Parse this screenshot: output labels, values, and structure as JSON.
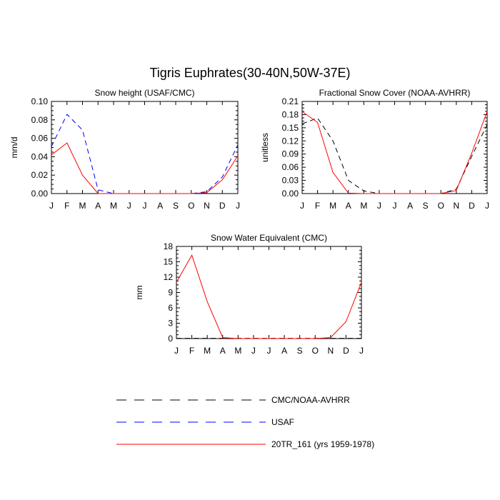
{
  "title": "Tigris Euphrates(30-40N,50W-37E)",
  "legend": [
    {
      "label": "CMC/NOAA-AVHRR",
      "color": "#000000",
      "dash": "dashed"
    },
    {
      "label": "USAF",
      "color": "#0000ff",
      "dash": "dashed"
    },
    {
      "label": "20TR_161 (yrs 1959-1978)",
      "color": "#ff0000",
      "dash": "solid"
    }
  ],
  "chart_data": [
    {
      "type": "line",
      "title": "Snow height (USAF/CMC)",
      "xlabel": "",
      "ylabel": "mm/d",
      "categories": [
        "J",
        "F",
        "M",
        "A",
        "M",
        "J",
        "J",
        "A",
        "S",
        "O",
        "N",
        "D",
        "J"
      ],
      "ylim": [
        0,
        0.1
      ],
      "yticks": [
        0,
        0.02,
        0.04,
        0.06,
        0.08,
        0.1
      ],
      "ytick_labels": [
        "0.00",
        "0.02",
        "0.04",
        "0.06",
        "0.08",
        "0.10"
      ],
      "series": [
        {
          "name": "USAF",
          "color": "#0000ff",
          "dash": "dashed",
          "values": [
            0.051,
            0.086,
            0.069,
            0.004,
            0.0,
            0.0,
            0.0,
            0.0,
            0.0,
            0.0,
            0.002,
            0.018,
            0.053
          ]
        },
        {
          "name": "20TR_161 (yrs 1959-1978)",
          "color": "#ff0000",
          "dash": "solid",
          "values": [
            0.042,
            0.055,
            0.02,
            0.0,
            0.0,
            0.0,
            0.0,
            0.0,
            0.0,
            0.0,
            0.001,
            0.015,
            0.041
          ]
        }
      ]
    },
    {
      "type": "line",
      "title": "Fractional Snow Cover (NOAA-AVHRR)",
      "xlabel": "",
      "ylabel": "unitless",
      "categories": [
        "J",
        "F",
        "M",
        "A",
        "M",
        "J",
        "J",
        "A",
        "S",
        "O",
        "N",
        "D",
        "J"
      ],
      "ylim": [
        0,
        0.21
      ],
      "yticks": [
        0,
        0.03,
        0.06,
        0.09,
        0.12,
        0.15,
        0.18,
        0.21
      ],
      "ytick_labels": [
        "0.00",
        "0.03",
        "0.06",
        "0.09",
        "0.12",
        "0.15",
        "0.18",
        "0.21"
      ],
      "series": [
        {
          "name": "CMC/NOAA-AVHRR",
          "color": "#000000",
          "dash": "dashed",
          "values": [
            0.159,
            0.172,
            0.12,
            0.03,
            0.006,
            0.0,
            0.0,
            0.0,
            0.0,
            0.0,
            0.01,
            0.085,
            0.157
          ]
        },
        {
          "name": "20TR_161 (yrs 1959-1978)",
          "color": "#ff0000",
          "dash": "solid",
          "values": [
            0.187,
            0.162,
            0.048,
            0.001,
            0.0,
            0.0,
            0.0,
            0.0,
            0.0,
            0.0,
            0.007,
            0.092,
            0.187
          ]
        }
      ]
    },
    {
      "type": "line",
      "title": "Snow Water Equivalent (CMC)",
      "xlabel": "",
      "ylabel": "mm",
      "categories": [
        "J",
        "F",
        "M",
        "A",
        "M",
        "J",
        "J",
        "A",
        "S",
        "O",
        "N",
        "D",
        "J"
      ],
      "ylim": [
        0,
        18
      ],
      "yticks": [
        0,
        3,
        6,
        9,
        12,
        15,
        18
      ],
      "ytick_labels": [
        "0",
        "3",
        "6",
        "9",
        "12",
        "15",
        "18"
      ],
      "series": [
        {
          "name": "CMC/NOAA-AVHRR",
          "color": "#000000",
          "dash": "dashed",
          "values": [
            0.05,
            0.05,
            0.05,
            0.05,
            0.05,
            0.05,
            0.05,
            0.05,
            0.05,
            0.05,
            0.05,
            0.05,
            0.05
          ]
        },
        {
          "name": "20TR_161 (yrs 1959-1978)",
          "color": "#ff0000",
          "dash": "solid",
          "values": [
            11.0,
            16.3,
            7.2,
            0.2,
            0.0,
            0.0,
            0.0,
            0.0,
            0.0,
            0.0,
            0.2,
            3.3,
            11.0
          ]
        }
      ]
    }
  ]
}
